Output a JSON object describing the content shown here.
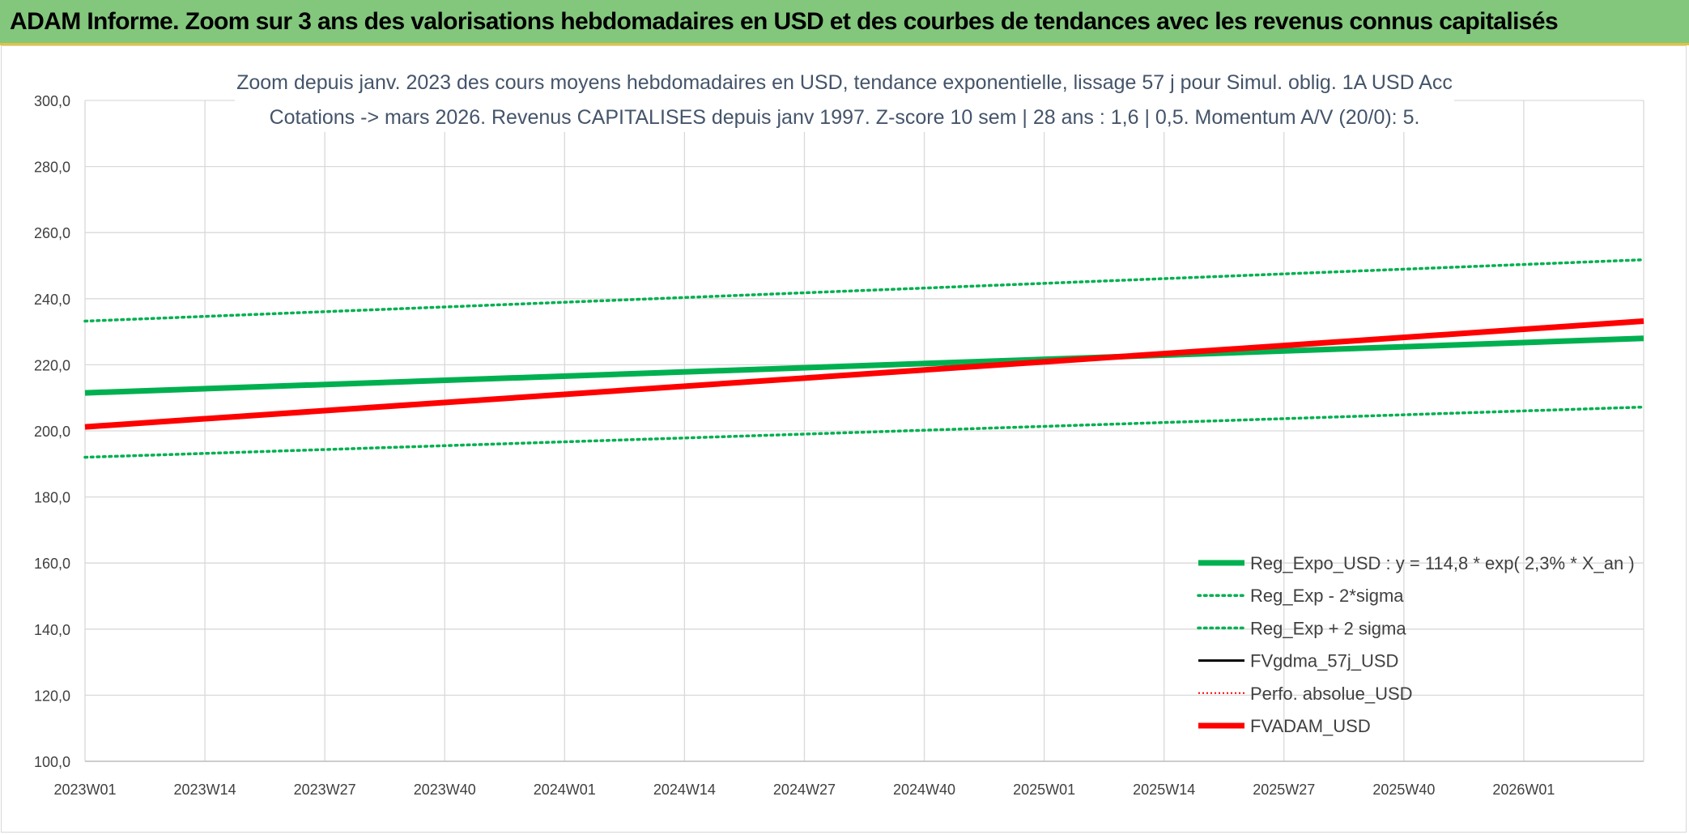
{
  "header": {
    "title": "ADAM Informe. Zoom sur 3 ans des valorisations hebdomadaires en USD et des courbes de tendances avec les revenus connus capitalisés"
  },
  "colors": {
    "header_bg": "#82c77c",
    "header_border": "#e3c23a",
    "reg_expo": "#00b050",
    "fvadam": "#ff0000",
    "fvgdma": "#000000",
    "grid": "#d9d9d9",
    "subtitle": "#44546a"
  },
  "chart_data": {
    "type": "line",
    "title_line1": "Zoom depuis janv. 2023 des cours moyens hebdomadaires en USD, tendance exponentielle, lissage 57 j pour Simul. oblig. 1A USD Acc",
    "title_line2": "Cotations -> mars 2026. Revenus CAPITALISES depuis janv 1997. Z-score 10 sem | 28 ans : 1,6 | 0,5. Momentum A/V (20/0): 5.",
    "ylim": [
      100,
      300
    ],
    "y_ticks": [
      "300,0",
      "280,0",
      "260,0",
      "240,0",
      "220,0",
      "200,0",
      "180,0",
      "160,0",
      "140,0",
      "120,0",
      "100,0"
    ],
    "x_ticks": [
      "2023W01",
      "2023W14",
      "2023W27",
      "2023W40",
      "2024W01",
      "2024W14",
      "2024W27",
      "2024W40",
      "2025W01",
      "2025W14",
      "2025W27",
      "2025W40",
      "2026W01"
    ],
    "x_range_weeks": [
      0,
      169
    ],
    "grid": true,
    "legend_position": "bottom-right",
    "series": [
      {
        "name": "Reg_Expo_USD : y = 114,8 * exp( 2,3% *  X_an )",
        "color": "#00b050",
        "style": "solid-thick",
        "x": [
          0,
          169
        ],
        "y": [
          211.5,
          228.0
        ]
      },
      {
        "name": "Reg_Exp - 2*sigma",
        "color": "#00b050",
        "style": "dotted",
        "x": [
          0,
          169
        ],
        "y": [
          192.0,
          207.2
        ]
      },
      {
        "name": "Reg_Exp + 2 sigma",
        "color": "#00b050",
        "style": "dotted",
        "x": [
          0,
          169
        ],
        "y": [
          233.2,
          251.8
        ]
      },
      {
        "name": "FVgdma_57j_USD",
        "color": "#000000",
        "style": "solid",
        "x": [
          0,
          169
        ],
        "y": [
          201.2,
          233.2
        ]
      },
      {
        "name": "Perfo. absolue_USD",
        "color": "#ff0000",
        "style": "dotted-thin",
        "x": [
          0,
          169
        ],
        "y": [
          201.2,
          233.2
        ]
      },
      {
        "name": "FVADAM_USD",
        "color": "#ff0000",
        "style": "solid-thick",
        "x": [
          0,
          169
        ],
        "y": [
          201.2,
          233.2
        ]
      }
    ]
  }
}
